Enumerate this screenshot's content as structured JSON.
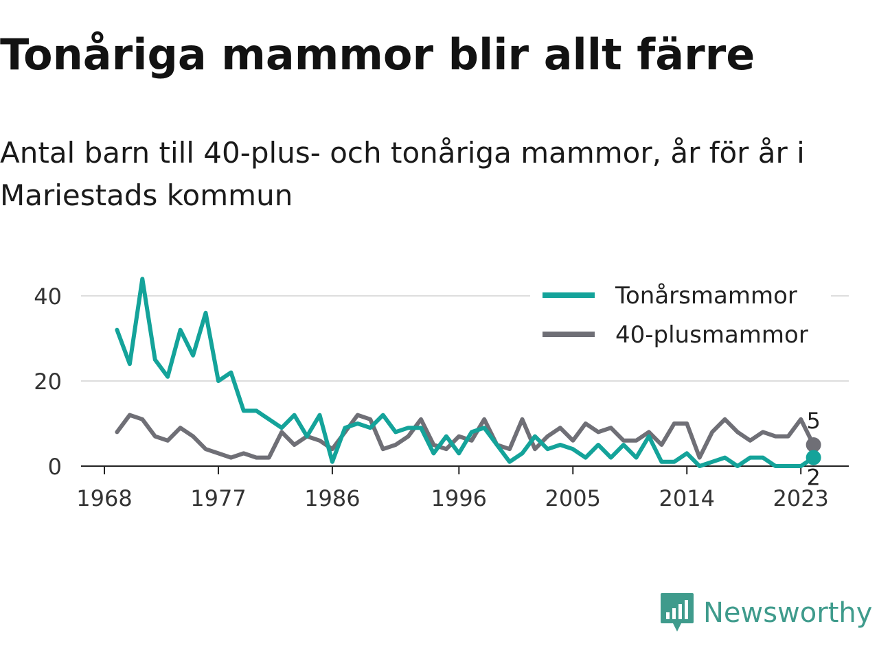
{
  "chart_data": {
    "type": "line",
    "title": "Tonåriga mammor blir allt färre",
    "subtitle": "Antal barn till 40-plus- och tonåriga mammor, år för år i Mariestads kommun",
    "x": [
      1969,
      1970,
      1971,
      1972,
      1973,
      1974,
      1975,
      1976,
      1977,
      1978,
      1979,
      1980,
      1981,
      1982,
      1983,
      1984,
      1985,
      1986,
      1987,
      1988,
      1989,
      1990,
      1991,
      1992,
      1993,
      1994,
      1995,
      1996,
      1997,
      1998,
      1999,
      2000,
      2001,
      2002,
      2003,
      2004,
      2005,
      2006,
      2007,
      2008,
      2009,
      2010,
      2011,
      2012,
      2013,
      2014,
      2015,
      2016,
      2017,
      2018,
      2019,
      2020,
      2021,
      2022,
      2023,
      2024
    ],
    "xticks": [
      1968,
      1977,
      1986,
      1996,
      2005,
      2014,
      2023
    ],
    "yticks": [
      0,
      20,
      40
    ],
    "xlim": [
      1968,
      2024
    ],
    "ylim": [
      0,
      45
    ],
    "grid": true,
    "legend_position": "top-right",
    "series": [
      {
        "name": "Tonårsmammor",
        "color": "#14a39a",
        "values": [
          32,
          24,
          44,
          25,
          21,
          32,
          26,
          36,
          20,
          22,
          13,
          13,
          11,
          9,
          12,
          7,
          12,
          1,
          9,
          10,
          9,
          12,
          8,
          9,
          9,
          3,
          7,
          3,
          8,
          9,
          5,
          1,
          3,
          7,
          4,
          5,
          4,
          2,
          5,
          2,
          5,
          2,
          7,
          1,
          1,
          3,
          0,
          1,
          2,
          0,
          2,
          2,
          0,
          0,
          0,
          2
        ],
        "end_label": "2"
      },
      {
        "name": "40-plusmammor",
        "color": "#6f6f76",
        "values": [
          8,
          12,
          11,
          7,
          6,
          9,
          7,
          4,
          3,
          2,
          3,
          2,
          2,
          8,
          5,
          7,
          6,
          4,
          8,
          12,
          11,
          4,
          5,
          7,
          11,
          5,
          4,
          7,
          6,
          11,
          5,
          4,
          11,
          4,
          7,
          9,
          6,
          10,
          8,
          9,
          6,
          6,
          8,
          5,
          10,
          10,
          2,
          8,
          11,
          8,
          6,
          8,
          7,
          7,
          11,
          5
        ],
        "end_label": "5"
      }
    ]
  },
  "brand": {
    "name": "Newsworthy",
    "color": "#3f9b8c",
    "icon": "newsworthy-logo-icon"
  }
}
